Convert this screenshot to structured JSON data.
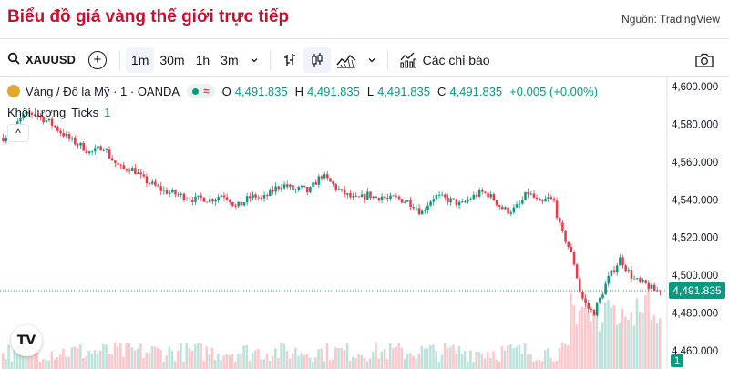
{
  "page": {
    "title": "Biểu đồ giá vàng thế giới trực tiếp",
    "source": "Nguồn: TradingView"
  },
  "toolbar": {
    "symbol": "XAUUSD",
    "timeframes": [
      "1m",
      "30m",
      "1h",
      "3m"
    ],
    "active_timeframe": "1m",
    "indicators_label": "Các chỉ báo"
  },
  "legend": {
    "instrument": "Vàng / Đô la Mỹ · 1 · OANDA",
    "open_key": "O",
    "open": "4,491.835",
    "high_key": "H",
    "high": "4,491.835",
    "low_key": "L",
    "low": "4,491.835",
    "close_key": "C",
    "close": "4,491.835",
    "change": "+0.005 (+0.00%)"
  },
  "volume_legend": {
    "label": "Khối lượng",
    "unit": "Ticks",
    "value": "1"
  },
  "price_badge": "4,491.835",
  "volume_badge": "1",
  "colors": {
    "up": "#089981",
    "down": "#f23645",
    "title": "#c8102e"
  },
  "chart_data": {
    "type": "candlestick",
    "y_ticks": [
      "4,600.000",
      "4,580.000",
      "4,560.000",
      "4,540.000",
      "4,520.000",
      "4,500.000",
      "4,480.000",
      "4,460.000"
    ],
    "y_range": [
      4460,
      4600
    ],
    "last_price": 4491.835,
    "price_path": [
      4573,
      4575,
      4580,
      4584,
      4586,
      4585,
      4583,
      4581,
      4578,
      4575,
      4572,
      4570,
      4568,
      4565,
      4566,
      4569,
      4563,
      4559,
      4556,
      4557,
      4555,
      4551,
      4549,
      4547,
      4545,
      4544,
      4543,
      4542,
      4541,
      4540,
      4541,
      4540,
      4541,
      4543,
      4541,
      4536,
      4538,
      4541,
      4542,
      4540,
      4543,
      4546,
      4548,
      4547,
      4545,
      4546,
      4544,
      4549,
      4553,
      4550,
      4547,
      4544,
      4542,
      4540,
      4541,
      4543,
      4541,
      4542,
      4540,
      4541,
      4540,
      4539,
      4537,
      4533,
      4538,
      4542,
      4541,
      4540,
      4539,
      4537,
      4540,
      4542,
      4544,
      4543,
      4540,
      4536,
      4534,
      4535,
      4538,
      4544,
      4541,
      4537,
      4541,
      4539,
      4524,
      4517,
      4507,
      4490,
      4483,
      4480,
      4488,
      4497,
      4503,
      4509,
      4503,
      4498,
      4496,
      4495,
      4492,
      4491.835
    ]
  }
}
